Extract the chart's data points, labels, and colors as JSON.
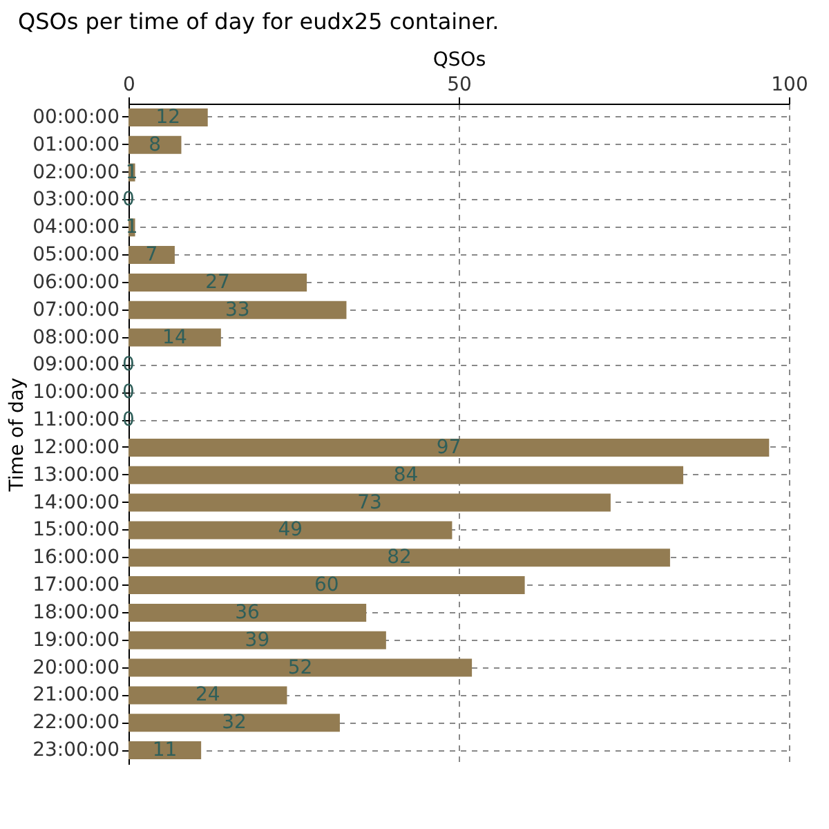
{
  "chart_data": {
    "type": "bar",
    "orientation": "horizontal",
    "title": "QSOs per time of day for eudx25 container.",
    "xlabel": "QSOs",
    "ylabel": "Time of day",
    "categories": [
      "00:00:00",
      "01:00:00",
      "02:00:00",
      "03:00:00",
      "04:00:00",
      "05:00:00",
      "06:00:00",
      "07:00:00",
      "08:00:00",
      "09:00:00",
      "10:00:00",
      "11:00:00",
      "12:00:00",
      "13:00:00",
      "14:00:00",
      "15:00:00",
      "16:00:00",
      "17:00:00",
      "18:00:00",
      "19:00:00",
      "20:00:00",
      "21:00:00",
      "22:00:00",
      "23:00:00"
    ],
    "values": [
      12,
      8,
      1,
      0,
      1,
      7,
      27,
      33,
      14,
      0,
      0,
      0,
      97,
      84,
      73,
      49,
      82,
      60,
      36,
      39,
      52,
      24,
      32,
      11
    ],
    "color": "#937c52",
    "xlim": [
      0,
      100
    ],
    "xticks": [
      0,
      50,
      100
    ],
    "grid": true,
    "data_labels": true
  }
}
